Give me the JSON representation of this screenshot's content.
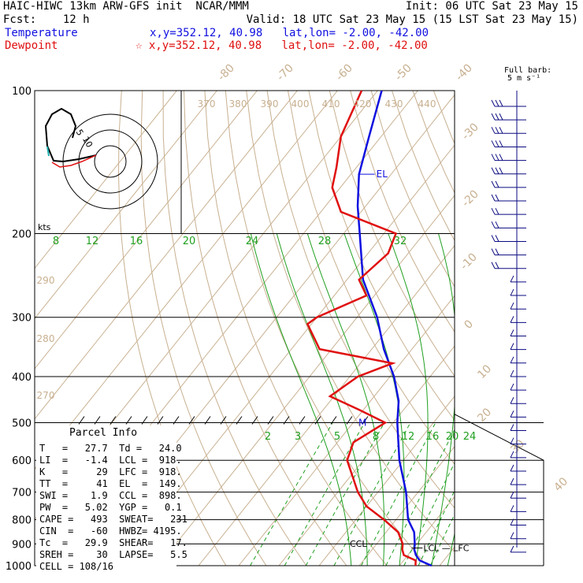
{
  "header": {
    "line1_left": "HAIC-HIWC 13km ARW-GFS init  NCAR/MMM",
    "line1_right": "Init: 06 UTC Sat 23 May 15",
    "line2_left": "Fcst:    12 h",
    "line2_right": "Valid: 18 UTC Sat 23 May 15 (15 LST Sat 23 May 15)",
    "temp_label": "Temperature",
    "temp_loc": "x,y=352.12, 40.98   lat,lon= -2.00, -42.00",
    "dew_label": "Dewpoint",
    "dew_loc": "x,y=352.12, 40.98   lat,lon= -2.00, -42.00",
    "barb_title_1": "Full barb:",
    "barb_title_2": "5 m s⁻¹"
  },
  "colors": {
    "temperature": "#1010e0",
    "dewpoint": "#e01010",
    "isotherm": "#c8b090",
    "mixing_ratio": "#20a020",
    "frame": "#000000"
  },
  "chart_data": {
    "type": "line",
    "subtype": "skew-T log-P sounding",
    "y_axis": {
      "label": "",
      "scale": "log",
      "range_hpa": [
        1000,
        100
      ],
      "ticks": [
        100,
        200,
        300,
        400,
        500,
        600,
        700,
        800,
        900,
        1000
      ]
    },
    "isotherm_labels": [
      "-80",
      "-70",
      "-60",
      "-50",
      "-40",
      "-30",
      "-20",
      "-10",
      "0",
      "10",
      "20",
      "30",
      "40"
    ],
    "theta_labels": [
      "370",
      "380",
      "390",
      "400",
      "410",
      "420",
      "430",
      "440",
      "290",
      "280",
      "270"
    ],
    "mixing_ratio_labels_upper": [
      "8",
      "12",
      "16",
      "20",
      "24",
      "28",
      "32"
    ],
    "mixing_ratio_labels_lower": [
      "2",
      "3",
      "5",
      "8",
      "12",
      "16",
      "20",
      "24"
    ],
    "series": [
      {
        "name": "Temperature",
        "color": "#1010e0",
        "points": [
          [
            1000,
            28
          ],
          [
            975,
            24
          ],
          [
            950,
            22
          ],
          [
            925,
            20.5
          ],
          [
            900,
            19.5
          ],
          [
            850,
            17
          ],
          [
            800,
            13
          ],
          [
            700,
            7
          ],
          [
            600,
            -1
          ],
          [
            500,
            -9
          ],
          [
            450,
            -13
          ],
          [
            400,
            -19
          ],
          [
            350,
            -27
          ],
          [
            300,
            -35
          ],
          [
            250,
            -46
          ],
          [
            200,
            -56
          ],
          [
            175,
            -62
          ],
          [
            150,
            -68
          ],
          [
            125,
            -73
          ],
          [
            100,
            -79
          ]
        ]
      },
      {
        "name": "Dewpoint",
        "color": "#e01010",
        "points": [
          [
            1000,
            24
          ],
          [
            975,
            23
          ],
          [
            950,
            19
          ],
          [
            925,
            17.5
          ],
          [
            900,
            16.5
          ],
          [
            850,
            13
          ],
          [
            800,
            7
          ],
          [
            750,
            0
          ],
          [
            700,
            -5
          ],
          [
            600,
            -14
          ],
          [
            550,
            -16
          ],
          [
            500,
            -12
          ],
          [
            470,
            -21
          ],
          [
            440,
            -31
          ],
          [
            400,
            -28
          ],
          [
            375,
            -22
          ],
          [
            350,
            -43
          ],
          [
            310,
            -51
          ],
          [
            300,
            -50
          ],
          [
            270,
            -42
          ],
          [
            250,
            -47
          ],
          [
            220,
            -45
          ],
          [
            200,
            -47
          ],
          [
            180,
            -65
          ],
          [
            160,
            -72
          ],
          [
            145,
            -75
          ],
          [
            125,
            -80
          ],
          [
            100,
            -84
          ]
        ]
      }
    ],
    "annotations": [
      "EL",
      "M",
      "CCL",
      "LCL",
      "LFC",
      "kts"
    ],
    "hodograph": {
      "ring_labels": [
        "5",
        "10"
      ],
      "unit": "kts"
    },
    "wind_barbs": {
      "count": 34,
      "note": "Full barb: 5 m s-1"
    }
  },
  "parcel": {
    "title": "Parcel Info",
    "rows": [
      "T   =   27.7  Td =   24.0",
      "LI  =   -1.4  LCL =  918.",
      "K   =     29  LFC =  918.",
      "TT  =     41  EL  =  149.",
      "SWI =    1.9  CCL =  898.",
      "PW  =   5.02  YGP =   0.1",
      "CAPE =   493  SWEAT=   231",
      "CIN  =   -60  HWBZ= 4195.",
      "Tc  =   29.9  SHEAR=   17.",
      "SREH =    30  LAPSE=   5.5",
      "CELL = 108/16"
    ]
  }
}
